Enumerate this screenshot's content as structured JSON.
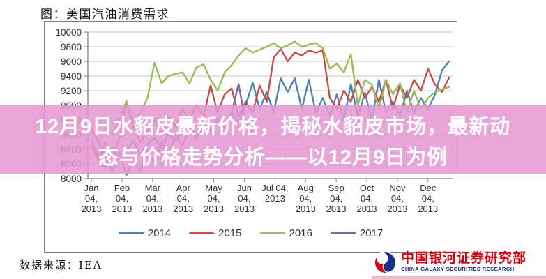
{
  "page": {
    "title": "图：美国汽油消费需求",
    "source_note": "数据来源：IEA"
  },
  "overlay": {
    "line1": "12月9日水貂皮最新价格，揭秘水貂皮市场，最新动",
    "line2": "态与价格走势分析——以12月9日为例",
    "bg_color": "#E298D2",
    "text_color": "#FFFFFF"
  },
  "logo": {
    "cn": "中国银河证券研究部",
    "en": "CHINA GALAXY SECURITIES RESEARCH",
    "cn_color": "#D7000F",
    "en_color": "#1B2F75",
    "icon": "galaxy-swirl-icon",
    "icon_colors": [
      "#D7000F",
      "#1B2F8F"
    ]
  },
  "chart_data": {
    "type": "line",
    "title": "图：美国汽油消费需求",
    "xlabel": "",
    "ylabel": "",
    "ylim": [
      8000,
      10000
    ],
    "y_ticks": [
      10000,
      9800,
      9600,
      9400,
      9200,
      9000,
      8800,
      8600,
      8400,
      8200,
      8000
    ],
    "x_tick_labels": [
      "Jan\n04,\n2013",
      "Feb\n04,\n2013",
      "Mar\n04,\n2013",
      "Apr\n04,\n2013",
      "May\n04,\n2013",
      "Jun\n04,\n2013",
      "Jul 04,\n2013",
      "Aug\n04,\n2013",
      "Sep\n04,\n2013",
      "Oct\n04,\n2013",
      "Nov\n04,\n2013",
      "Dec\n04,\n2013"
    ],
    "grid": "horizontal",
    "legend_position": "bottom",
    "grid_color": "#C6C6C6",
    "axis_color": "#808080",
    "series": [
      {
        "name": "2014",
        "color": "#4F81BD",
        "values": [
          8520,
          8300,
          8150,
          8420,
          8260,
          8380,
          8520,
          8310,
          8460,
          8560,
          8420,
          8620,
          8520,
          8660,
          8720,
          8560,
          8760,
          8670,
          8820,
          8720,
          8900,
          8760,
          9000,
          9310,
          8950,
          9180,
          8900,
          9370,
          9180,
          9370,
          8950,
          9350,
          8900,
          9100,
          8850,
          9150,
          8800,
          9290,
          8850,
          9170,
          8800,
          9350,
          8900,
          9050,
          8850,
          9200,
          8900,
          9100,
          8950,
          9150,
          9480,
          9600
        ]
      },
      {
        "name": "2015",
        "color": "#C0504D",
        "values": [
          8450,
          8250,
          8500,
          8300,
          8550,
          9050,
          8700,
          8500,
          8650,
          8800,
          8600,
          8850,
          8700,
          8950,
          8800,
          9000,
          8850,
          9270,
          8900,
          9150,
          9230,
          8850,
          9050,
          8900,
          9270,
          9050,
          9650,
          9770,
          9600,
          9720,
          9680,
          9750,
          9720,
          9750,
          9100,
          8950,
          9200,
          9050,
          9350,
          9100,
          9250,
          9050,
          9350,
          8950,
          9280,
          9100,
          9350,
          9200,
          9500,
          9280,
          9180,
          9380
        ]
      },
      {
        "name": "2016",
        "color": "#9BBB59",
        "values": [
          8650,
          8500,
          8700,
          8600,
          8800,
          9060,
          8750,
          8900,
          9100,
          9580,
          9300,
          9400,
          9430,
          9450,
          9300,
          9520,
          9560,
          9350,
          9200,
          9450,
          9550,
          9680,
          9780,
          9720,
          9760,
          9800,
          9850,
          9780,
          9820,
          9870,
          9800,
          9830,
          9850,
          9780,
          9500,
          9570,
          9450,
          9700,
          9000,
          9350,
          9280,
          8950,
          9350,
          9150,
          9300,
          8900,
          9200,
          8950,
          9100,
          9180,
          9220,
          9250
        ]
      },
      {
        "name": "2017",
        "color": "#8064A2",
        "values": [
          8700,
          8500,
          8300,
          8100,
          8350,
          8050,
          8250,
          8100,
          8400,
          8200,
          8500,
          8300,
          8600,
          8450,
          8700,
          8550,
          8750,
          8650,
          8800,
          8700,
          8900,
          9290,
          8750,
          8600
        ]
      }
    ]
  }
}
